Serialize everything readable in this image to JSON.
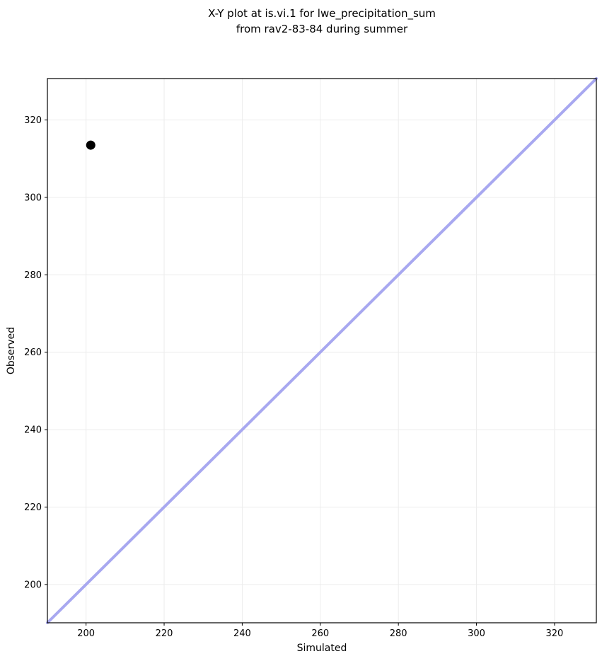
{
  "figure": {
    "background": "#ffffff"
  },
  "chart_data": {
    "type": "scatter",
    "title": "X-Y plot at is.vi.1 for lwe_precipitation_sum\nfrom rav2-83-84 during summer",
    "title_lines": [
      "X-Y plot at is.vi.1 for lwe_precipitation_sum",
      "from rav2-83-84 during summer"
    ],
    "xlabel": "Simulated",
    "ylabel": "Observed",
    "xlim": [
      190.1,
      330.7
    ],
    "ylim": [
      190.1,
      330.7
    ],
    "xticks": [
      200,
      220,
      240,
      260,
      280,
      300,
      320
    ],
    "yticks": [
      200,
      220,
      240,
      260,
      280,
      300,
      320
    ],
    "grid": true,
    "legend": false,
    "series": [
      {
        "name": "observed-vs-simulated-points",
        "type": "scatter",
        "points": [
          {
            "x": 201.2,
            "y": 313.5
          }
        ],
        "marker_color": "#000000",
        "marker_radius": 6.5
      },
      {
        "name": "identity-line",
        "type": "line",
        "points": [
          {
            "x": 190.1,
            "y": 190.1
          },
          {
            "x": 330.7,
            "y": 330.7
          }
        ],
        "color": "#a8a8f0",
        "width": 4
      }
    ],
    "colors": {
      "grid": "#ececec",
      "spine": "#000000",
      "tick": "#000000",
      "text": "#000000",
      "background": "#ffffff"
    },
    "styles": {
      "tick_font_size": 13,
      "axis_label_font_size": 14,
      "tick_length": 4
    }
  }
}
